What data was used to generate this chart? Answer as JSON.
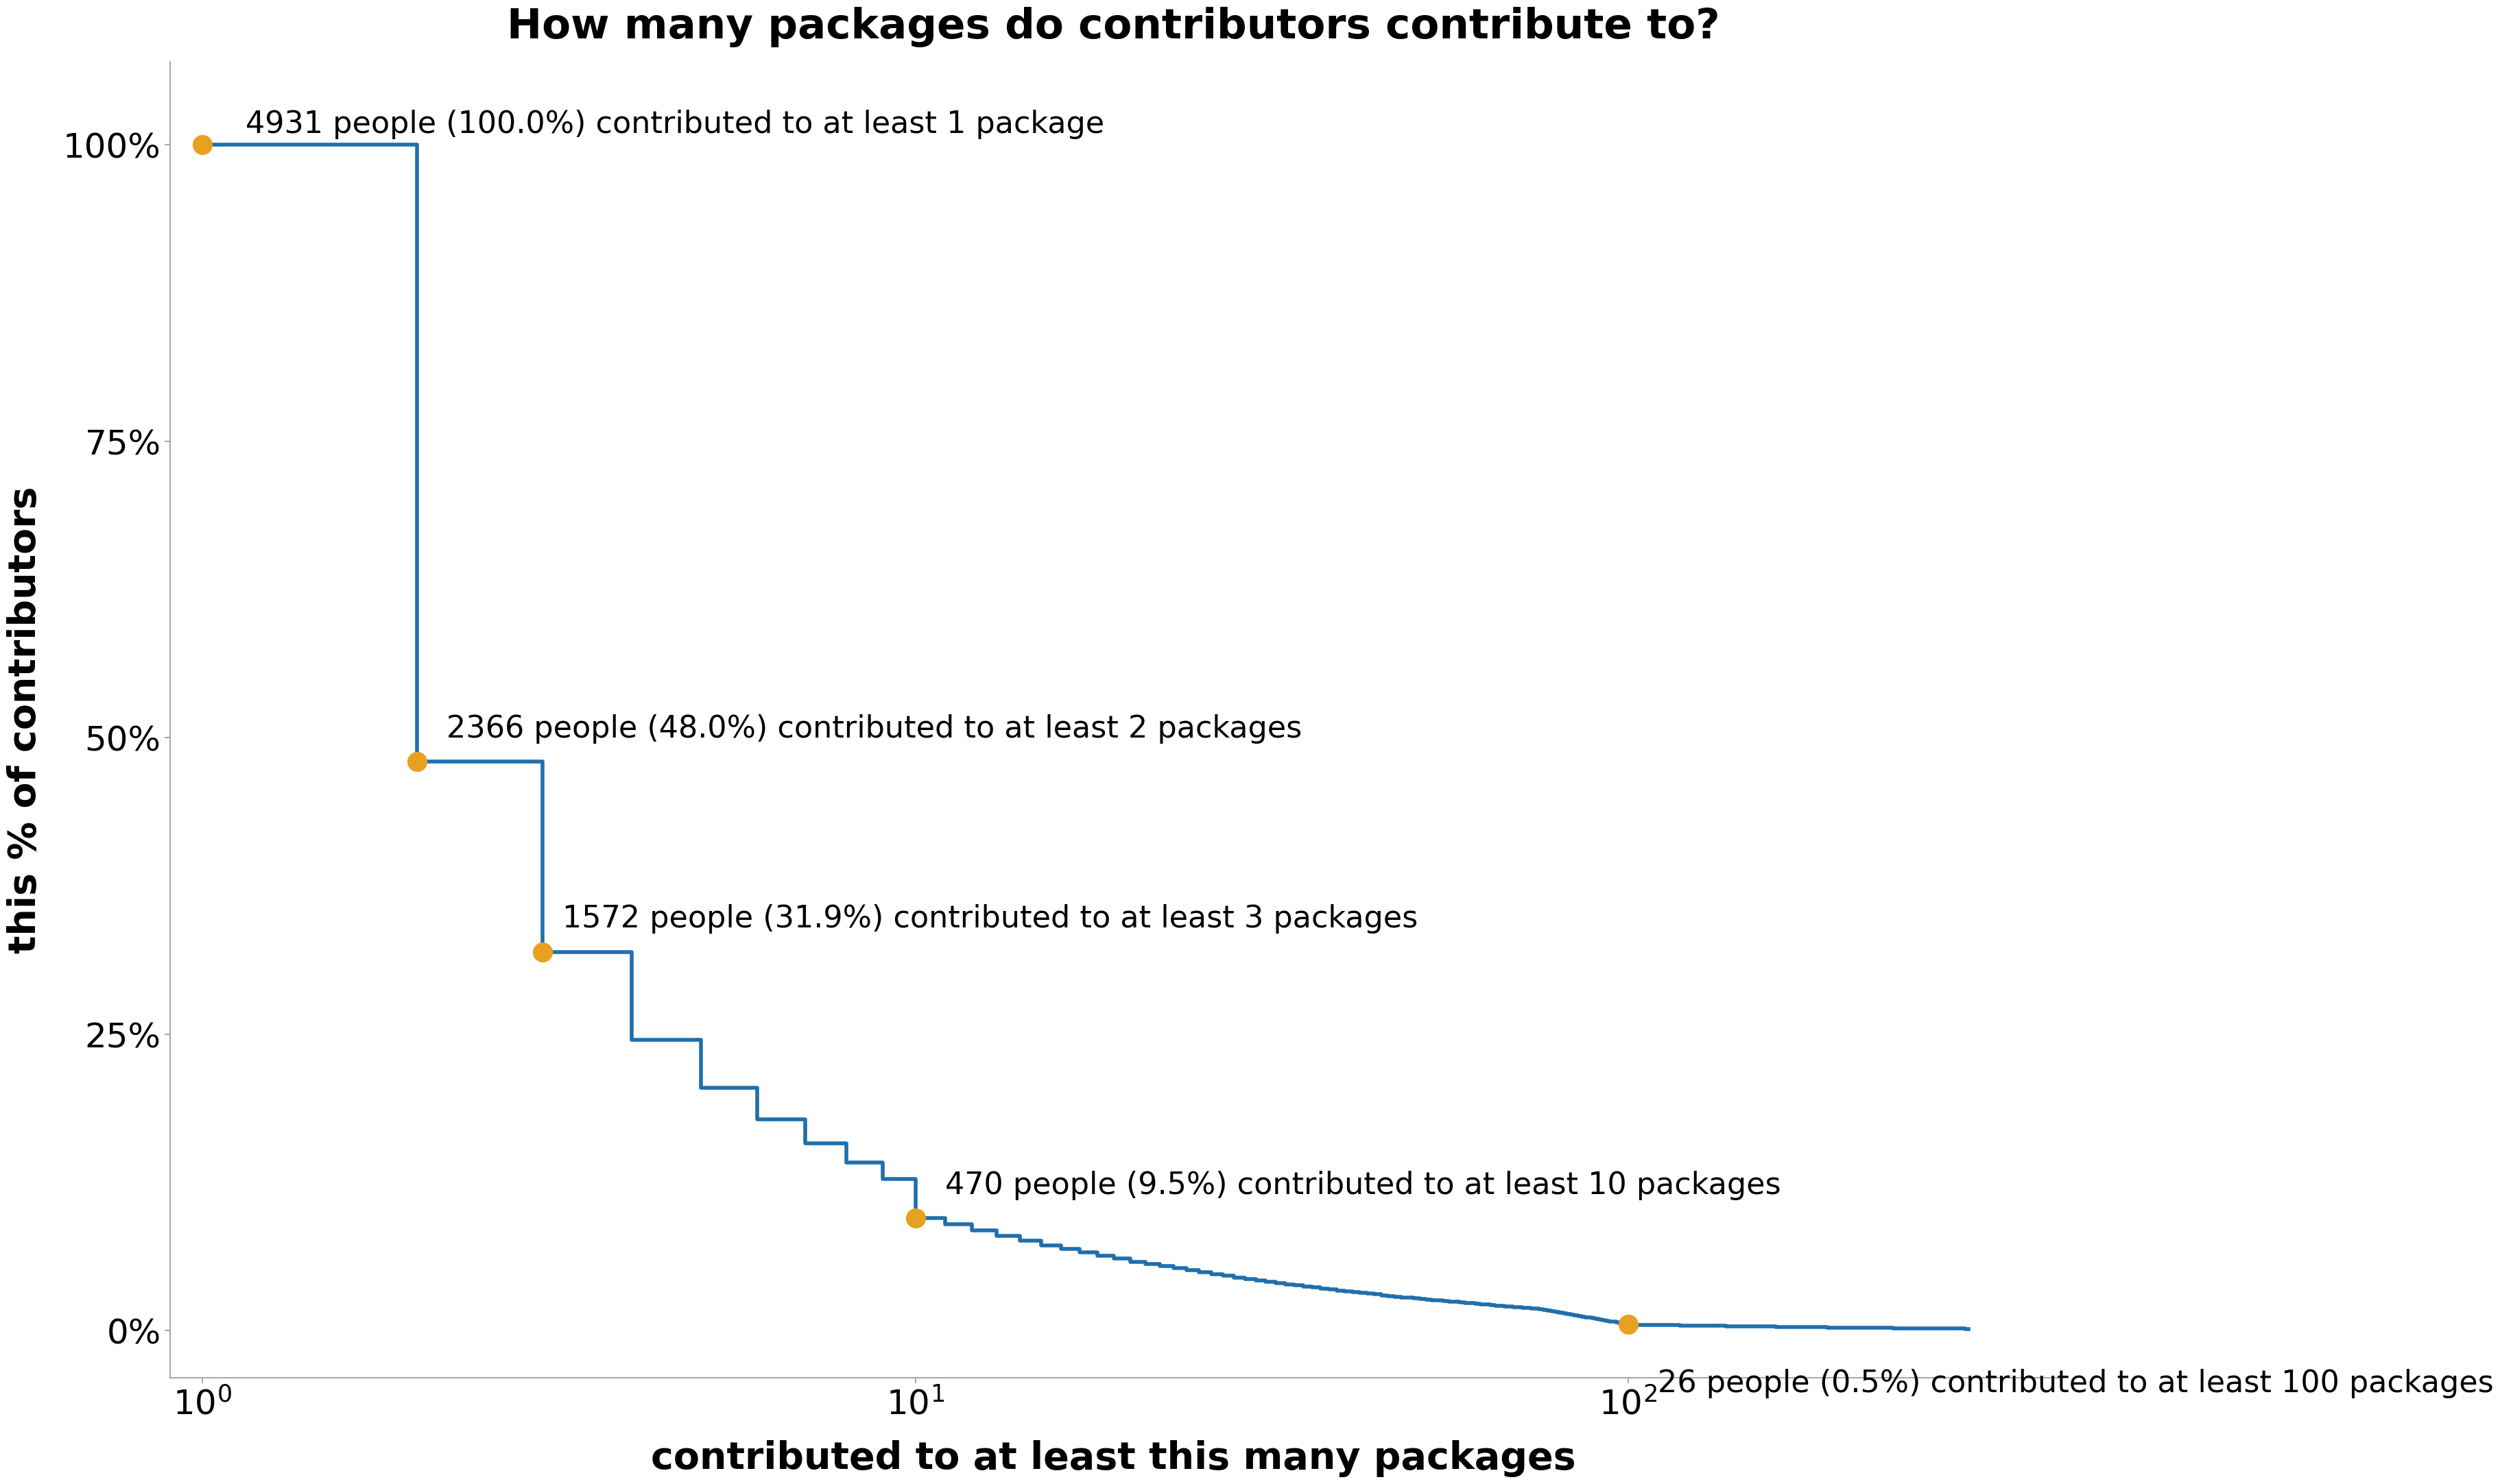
{
  "title": "How many packages do contributors contribute to?",
  "xlabel": "contributed to at least this many packages",
  "ylabel": "this % of contributors",
  "line_color": "#1f6fad",
  "dot_color": "#e8a020",
  "background_color": "#ffffff",
  "title_fontsize": 44,
  "label_fontsize": 40,
  "tick_fontsize": 36,
  "annotation_fontsize": 32,
  "total_contributors": 4931,
  "annotated_points": [
    {
      "x": 1,
      "count": 4931,
      "pct": 100.0,
      "label": "4931 people (100.0%) contributed to at least 1 package"
    },
    {
      "x": 2,
      "count": 2366,
      "pct": 48.0,
      "label": "2366 people (48.0%) contributed to at least 2 packages"
    },
    {
      "x": 3,
      "count": 1572,
      "pct": 31.9,
      "label": "1572 people (31.9%) contributed to at least 3 packages"
    },
    {
      "x": 10,
      "count": 470,
      "pct": 9.5,
      "label": "470 people (9.5%) contributed to at least 10 packages"
    },
    {
      "x": 100,
      "count": 26,
      "pct": 0.5,
      "label": "26 people (0.5%) contributed to at least 100 packages"
    }
  ],
  "xlim": [
    0.9,
    400
  ],
  "ylim": [
    -4,
    107
  ]
}
